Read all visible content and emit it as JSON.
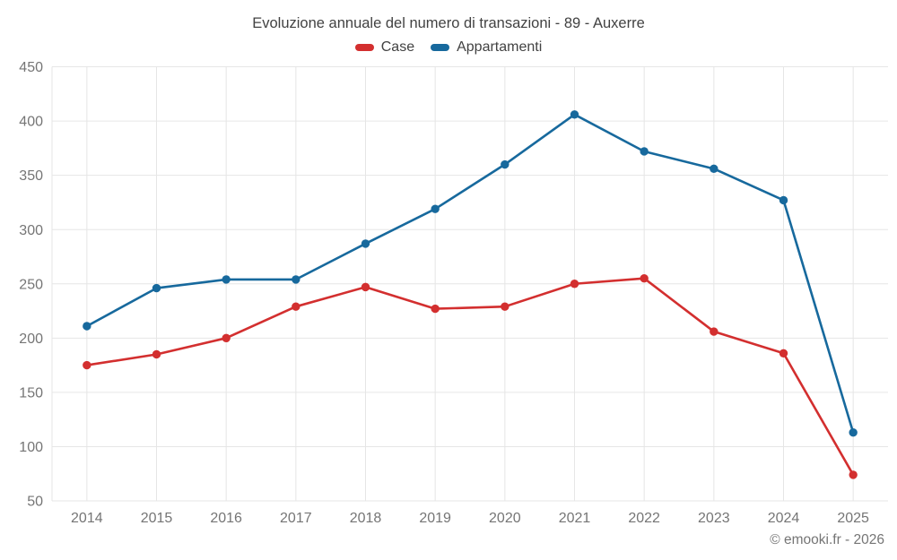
{
  "title": "Evoluzione annuale del numero di transazioni - 89 - Auxerre",
  "footer": {
    "copyright": "© emooki.fr - 2026"
  },
  "colors": {
    "grid": "#e6e6e6",
    "axis_text": "#757575",
    "title_text": "#424242",
    "case_red": "#d32f2f",
    "appartamenti_blue": "#17699d",
    "background": "#ffffff"
  },
  "chart_data": {
    "type": "line",
    "title": "Evoluzione annuale del numero di transazioni - 89 - Auxerre",
    "categories": [
      "2014",
      "2015",
      "2016",
      "2017",
      "2018",
      "2019",
      "2020",
      "2021",
      "2022",
      "2023",
      "2024",
      "2025"
    ],
    "series": [
      {
        "name": "Case",
        "color": "#d32f2f",
        "values": [
          175,
          185,
          200,
          229,
          247,
          227,
          229,
          250,
          255,
          206,
          186,
          74
        ]
      },
      {
        "name": "Appartamenti",
        "color": "#17699d",
        "values": [
          211,
          246,
          254,
          254,
          287,
          319,
          360,
          406,
          372,
          356,
          327,
          113
        ]
      }
    ],
    "xlabel": "",
    "ylabel": "",
    "ylim": [
      50,
      450
    ],
    "ytick_step": 50,
    "yticks": [
      50,
      100,
      150,
      200,
      250,
      300,
      350,
      400,
      450
    ],
    "grid": true,
    "legend_position": "top",
    "marker": "circle"
  }
}
